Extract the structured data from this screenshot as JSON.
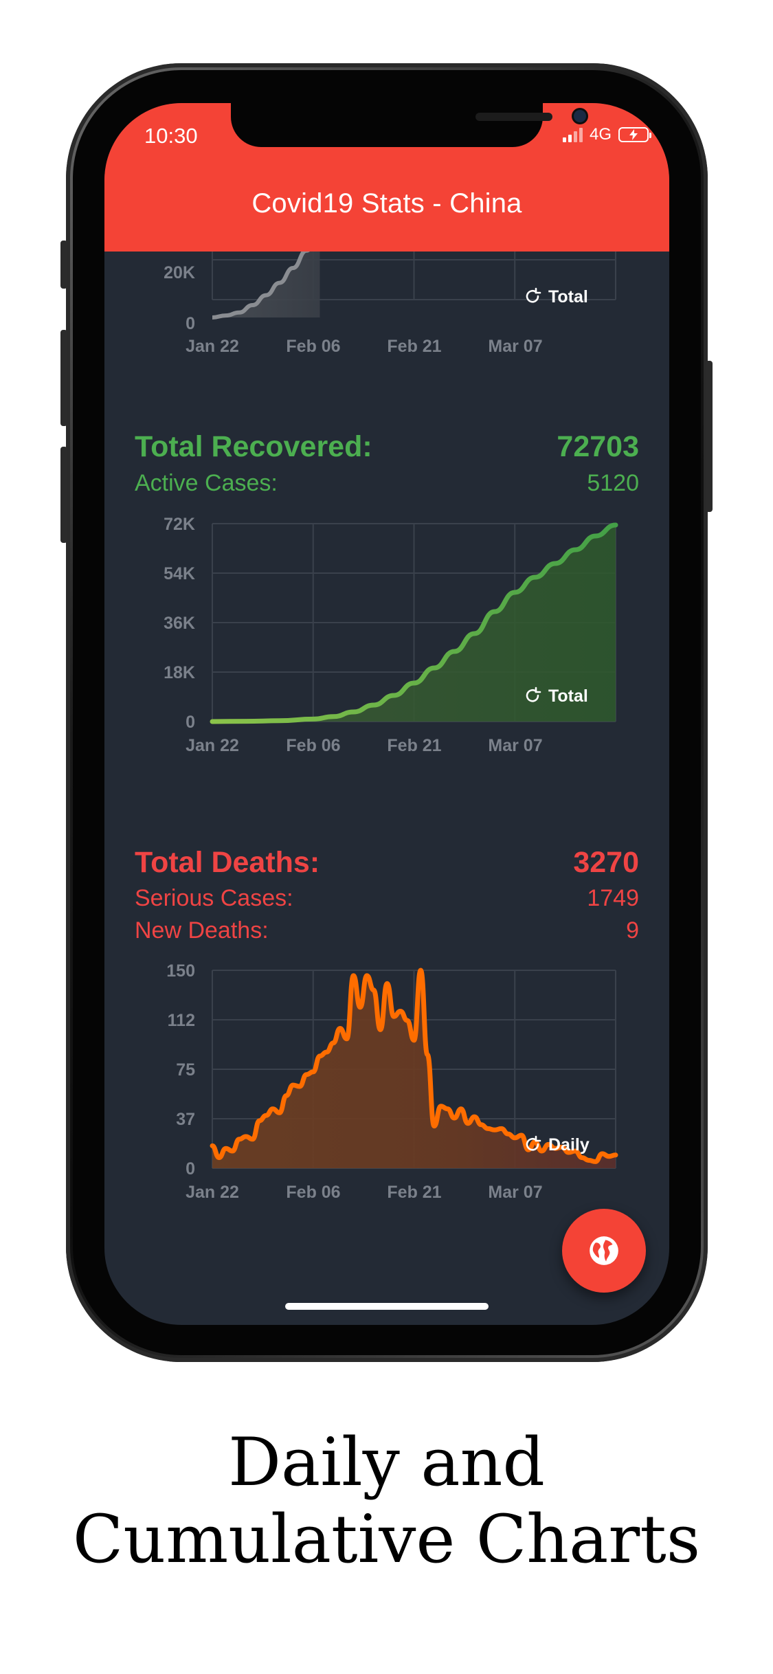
{
  "status_bar": {
    "time": "10:30",
    "network": "4G"
  },
  "app_bar": {
    "title": "Covid19 Stats - China"
  },
  "sections": {
    "confirmed_partial": {
      "toggle_label": "Total"
    },
    "recovered": {
      "title": "Total Recovered:",
      "value": "72703",
      "sub_label": "Active Cases:",
      "sub_value": "5120",
      "toggle_label": "Total"
    },
    "deaths": {
      "title": "Total Deaths:",
      "value": "3270",
      "sub1_label": "Serious Cases:",
      "sub1_value": "1749",
      "sub2_label": "New Deaths:",
      "sub2_value": "9",
      "toggle_label": "Daily"
    }
  },
  "colors": {
    "header": "#f44336",
    "background": "#232a35",
    "recovered": "#4caf50",
    "deaths": "#ef4444",
    "deaths_line": "#ff6d00",
    "confirmed_line": "#8a8d92"
  },
  "fab": {
    "icon": "globe-icon"
  },
  "caption": {
    "line1": "Daily and",
    "line2": "Cumulative Charts"
  },
  "chart_data": [
    {
      "type": "area",
      "tick_labels_y": [
        "20K",
        "0"
      ],
      "tick_labels_x": [
        "Jan 22",
        "Feb 06",
        "Feb 21",
        "Mar 07"
      ],
      "x": [
        0,
        2,
        4,
        6,
        8,
        10,
        12,
        14,
        16
      ],
      "values": [
        0,
        800,
        2000,
        5000,
        9000,
        14000,
        20000,
        27000,
        35000
      ],
      "visible_ylim": [
        0,
        32000
      ],
      "grid": true
    },
    {
      "type": "area",
      "tick_labels_y": [
        "72K",
        "54K",
        "36K",
        "18K",
        "0"
      ],
      "tick_labels_x": [
        "Jan 22",
        "Feb 06",
        "Feb 21",
        "Mar 07"
      ],
      "ylim": [
        0,
        72000
      ],
      "xlim": [
        0,
        60
      ],
      "x": [
        0,
        5,
        10,
        15,
        18,
        21,
        24,
        27,
        30,
        33,
        36,
        39,
        42,
        45,
        48,
        51,
        54,
        57,
        60
      ],
      "values": [
        0,
        100,
        300,
        900,
        1800,
        3500,
        6000,
        9500,
        14000,
        19500,
        25500,
        32000,
        40000,
        47000,
        52500,
        57500,
        62500,
        67500,
        71500
      ],
      "grid": true
    },
    {
      "type": "area",
      "tick_labels_y": [
        "150",
        "112",
        "75",
        "37",
        "0"
      ],
      "tick_labels_x": [
        "Jan 22",
        "Feb 06",
        "Feb 21",
        "Mar 07"
      ],
      "ylim": [
        0,
        150
      ],
      "xlim": [
        0,
        60
      ],
      "x": [
        0,
        1,
        2,
        3,
        4,
        5,
        6,
        7,
        8,
        9,
        10,
        11,
        12,
        13,
        14,
        15,
        16,
        17,
        18,
        19,
        20,
        21,
        22,
        23,
        24,
        25,
        26,
        27,
        28,
        29,
        30,
        31,
        32,
        33,
        34,
        35,
        36,
        37,
        38,
        39,
        40,
        41,
        42,
        43,
        44,
        45,
        46,
        47,
        48,
        49,
        50,
        51,
        52,
        53,
        54,
        55,
        56,
        57,
        58,
        59,
        60
      ],
      "values": [
        17,
        8,
        15,
        13,
        22,
        24,
        22,
        36,
        40,
        45,
        42,
        55,
        63,
        62,
        71,
        73,
        85,
        88,
        95,
        106,
        98,
        146,
        122,
        146,
        135,
        105,
        140,
        115,
        119,
        112,
        97,
        150,
        86,
        32,
        47,
        45,
        38,
        45,
        34,
        39,
        33,
        30,
        29,
        30,
        26,
        23,
        25,
        14,
        20,
        13,
        18,
        15,
        16,
        12,
        13,
        8,
        6,
        5,
        11,
        9,
        10
      ],
      "grid": true
    }
  ]
}
